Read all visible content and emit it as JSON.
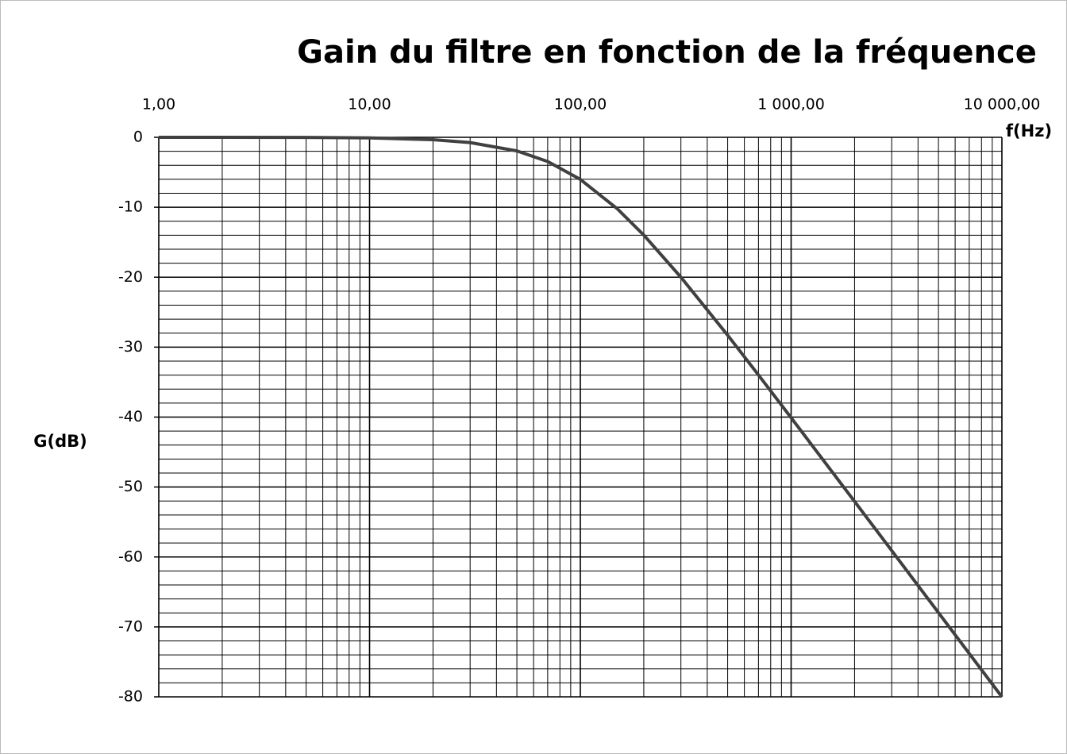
{
  "chart_data": {
    "type": "line",
    "title": "Gain du filtre en fonction de la fréquence",
    "x_label": "f(Hz)",
    "y_label": "G(dB)",
    "xscale": "log",
    "grid": true,
    "minor_grid": true,
    "xlim": [
      1,
      10000
    ],
    "xticks": [
      {
        "value": 1,
        "label": "1,00"
      },
      {
        "value": 10,
        "label": "10,00"
      },
      {
        "value": 100,
        "label": "100,00"
      },
      {
        "value": 1000,
        "label": "1 000,00"
      },
      {
        "value": 10000,
        "label": "10 000,00"
      }
    ],
    "ylim": [
      -80,
      0
    ],
    "yticks": [
      0,
      -10,
      -20,
      -30,
      -40,
      -50,
      -60,
      -70,
      -80
    ],
    "x": [
      1,
      2,
      5,
      10,
      20,
      30,
      50,
      70,
      100,
      150,
      200,
      300,
      500,
      700,
      1000,
      2000,
      3000,
      5000,
      7000,
      10000
    ],
    "series": [
      {
        "color": "#404040",
        "values": [
          0.0,
          0.0,
          -0.02,
          -0.09,
          -0.34,
          -0.75,
          -1.94,
          -3.46,
          -6.02,
          -10.24,
          -13.98,
          -20.0,
          -28.3,
          -33.98,
          -40.09,
          -52.06,
          -59.09,
          -67.96,
          -73.81,
          -80.0
        ]
      }
    ]
  }
}
